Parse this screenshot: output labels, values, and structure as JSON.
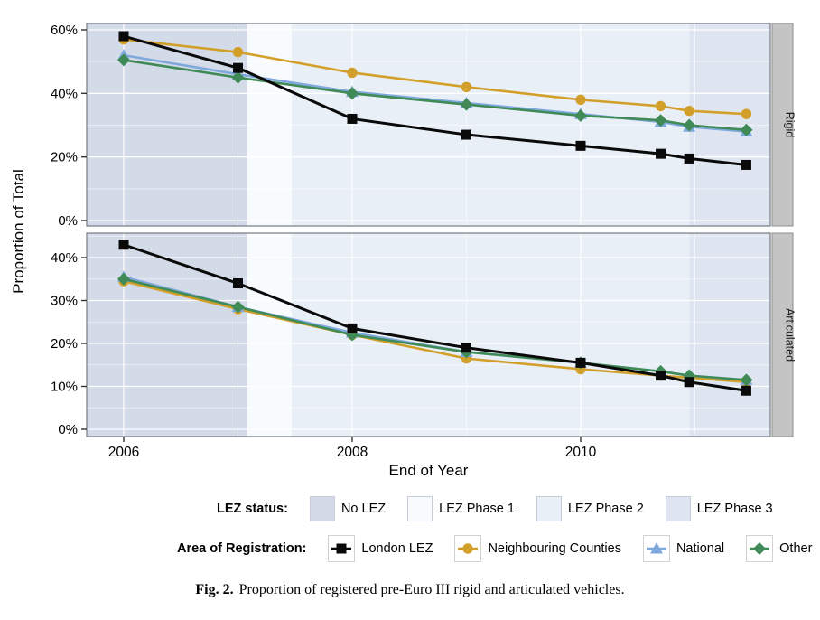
{
  "caption": {
    "label": "Fig. 2.",
    "text": "Proportion of registered pre-Euro III rigid and articulated vehicles."
  },
  "legend_lez": {
    "title": "LEZ status:",
    "items": [
      {
        "label": "No LEZ",
        "color": "#D3DAE8"
      },
      {
        "label": "LEZ Phase 1",
        "color": "#F8FBFE"
      },
      {
        "label": "LEZ Phase 2",
        "color": "#E9EFF6"
      },
      {
        "label": "LEZ Phase 3",
        "color": "#DEE5F1"
      }
    ]
  },
  "legend_area": {
    "title": "Area of Registration:",
    "items": [
      {
        "label": "London LEZ",
        "marker": "square",
        "color": "#0A0A0A"
      },
      {
        "label": "Neighbouring Counties",
        "marker": "circle",
        "color": "#D2A02A"
      },
      {
        "label": "National",
        "marker": "triangle",
        "color": "#7FA8DC"
      },
      {
        "label": "Other",
        "marker": "diamond",
        "color": "#3F8A57"
      }
    ]
  },
  "chart_data": {
    "type": "line",
    "xlabel": "End of Year",
    "ylabel": "Proportion of Total",
    "x": [
      2006,
      2007,
      2008,
      2009,
      2010,
      2010.7,
      2010.95,
      2011.45
    ],
    "xlim": [
      2005.68,
      2011.66
    ],
    "x_ticks": [
      2006,
      2008,
      2010
    ],
    "x_tick_labels": [
      "2006",
      "2008",
      "2010"
    ],
    "grid": "white-on-shaded",
    "lez_phases": [
      {
        "label": "No LEZ",
        "from": 2005.68,
        "to": 2007.08,
        "color": "#D3DAE8"
      },
      {
        "label": "LEZ Phase 1",
        "from": 2007.08,
        "to": 2007.47,
        "color": "#F8FBFE"
      },
      {
        "label": "LEZ Phase 2",
        "from": 2007.47,
        "to": 2010.95,
        "color": "#E9EFF6"
      },
      {
        "label": "LEZ Phase 3",
        "from": 2010.95,
        "to": 2011.66,
        "color": "#DEE5F1"
      }
    ],
    "panels": [
      {
        "name": "Rigid",
        "ylim": [
          0,
          62
        ],
        "yticks": [
          0,
          20,
          40,
          60
        ],
        "ytick_labels": [
          "0%",
          "20%",
          "40%",
          "60%"
        ],
        "series": [
          {
            "name": "London LEZ",
            "marker": "square",
            "color": "#0A0A0A",
            "values": [
              58,
              48,
              32,
              27,
              23.5,
              21,
              19.5,
              17.5
            ]
          },
          {
            "name": "Neighbouring Counties",
            "marker": "circle",
            "color": "#D2A02A",
            "values": [
              57,
              53,
              46.5,
              42,
              38,
              36,
              34.5,
              33.5
            ]
          },
          {
            "name": "National",
            "marker": "triangle",
            "color": "#7FA8DC",
            "values": [
              52,
              46,
              40.5,
              37,
              33.5,
              31,
              29.5,
              28
            ]
          },
          {
            "name": "Other",
            "marker": "diamond",
            "color": "#3F8A57",
            "values": [
              50.5,
              45,
              40,
              36.5,
              33,
              31.5,
              30,
              28.5
            ]
          }
        ]
      },
      {
        "name": "Articulated",
        "ylim": [
          0,
          45.7
        ],
        "yticks": [
          0,
          10,
          20,
          30,
          40
        ],
        "ytick_labels": [
          "0%",
          "10%",
          "20%",
          "30%",
          "40%"
        ],
        "series": [
          {
            "name": "London LEZ",
            "marker": "square",
            "color": "#0A0A0A",
            "values": [
              43,
              34,
              23.5,
              19,
              15.5,
              12.5,
              11,
              9
            ]
          },
          {
            "name": "Neighbouring Counties",
            "marker": "circle",
            "color": "#D2A02A",
            "values": [
              34.5,
              28,
              22,
              16.5,
              14,
              12.5,
              12,
              11
            ]
          },
          {
            "name": "National",
            "marker": "triangle",
            "color": "#7FA8DC",
            "values": [
              35.5,
              28.5,
              22.5,
              18,
              15.5,
              13.5,
              12.5,
              11.5
            ]
          },
          {
            "name": "Other",
            "marker": "diamond",
            "color": "#3F8A57",
            "values": [
              35,
              28.5,
              22,
              18,
              15.5,
              13.5,
              12.5,
              11.5
            ]
          }
        ]
      }
    ]
  }
}
